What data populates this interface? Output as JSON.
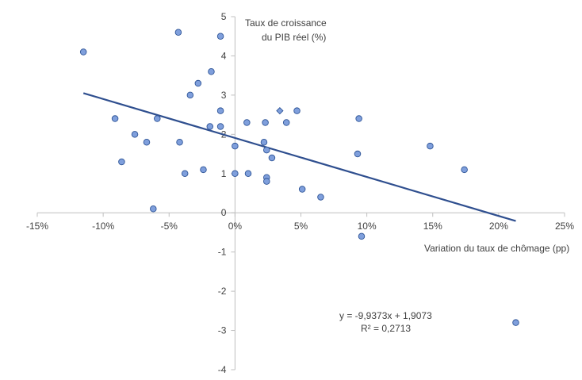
{
  "chart_data": {
    "type": "scatter",
    "title": "",
    "xlabel": "Variation du taux de chômage (pp)",
    "ylabel_lines": [
      "Taux de croissance",
      "du PIB réel (%)"
    ],
    "xlim": [
      -0.15,
      0.25
    ],
    "ylim": [
      -4,
      5
    ],
    "x_ticks": [
      -0.15,
      -0.1,
      -0.05,
      0,
      0.05,
      0.1,
      0.15,
      0.2,
      0.25
    ],
    "x_tick_labels": [
      "-15%",
      "-10%",
      "-5%",
      "0%",
      "5%",
      "10%",
      "15%",
      "20%",
      "25%"
    ],
    "y_ticks": [
      -4,
      -3,
      -2,
      -1,
      0,
      1,
      2,
      3,
      4,
      5
    ],
    "y_tick_labels": [
      "-4",
      "-3",
      "-2",
      "-1",
      "0",
      "1",
      "2",
      "3",
      "4",
      "5"
    ],
    "grid": false,
    "legend": "none",
    "marker_color": "#7f9fdc",
    "marker_edge_color": "#2f5597",
    "trendline_color": "#2f4f8f",
    "axis_color": "#bfbfbf",
    "points": [
      {
        "x": -0.115,
        "y": 4.1
      },
      {
        "x": -0.043,
        "y": 4.6
      },
      {
        "x": -0.011,
        "y": 4.5
      },
      {
        "x": -0.018,
        "y": 3.6
      },
      {
        "x": -0.028,
        "y": 3.3
      },
      {
        "x": -0.034,
        "y": 3.0
      },
      {
        "x": -0.011,
        "y": 2.6
      },
      {
        "x": 0.047,
        "y": 2.6
      },
      {
        "x": -0.091,
        "y": 2.4
      },
      {
        "x": -0.059,
        "y": 2.4
      },
      {
        "x": 0.094,
        "y": 2.4
      },
      {
        "x": 0.009,
        "y": 2.3
      },
      {
        "x": 0.023,
        "y": 2.3
      },
      {
        "x": 0.039,
        "y": 2.3
      },
      {
        "x": -0.019,
        "y": 2.2
      },
      {
        "x": -0.011,
        "y": 2.2
      },
      {
        "x": -0.076,
        "y": 2.0
      },
      {
        "x": -0.067,
        "y": 1.8
      },
      {
        "x": -0.042,
        "y": 1.8
      },
      {
        "x": 0.022,
        "y": 1.8
      },
      {
        "x": 0.0,
        "y": 1.7
      },
      {
        "x": 0.148,
        "y": 1.7
      },
      {
        "x": 0.024,
        "y": 1.6
      },
      {
        "x": 0.093,
        "y": 1.5
      },
      {
        "x": 0.028,
        "y": 1.4
      },
      {
        "x": -0.086,
        "y": 1.3
      },
      {
        "x": -0.024,
        "y": 1.1
      },
      {
        "x": 0.174,
        "y": 1.1
      },
      {
        "x": -0.038,
        "y": 1.0
      },
      {
        "x": 0.0,
        "y": 1.0
      },
      {
        "x": 0.01,
        "y": 1.0
      },
      {
        "x": 0.024,
        "y": 0.9
      },
      {
        "x": 0.024,
        "y": 0.8
      },
      {
        "x": 0.051,
        "y": 0.6
      },
      {
        "x": 0.065,
        "y": 0.4
      },
      {
        "x": -0.062,
        "y": 0.1
      },
      {
        "x": 0.096,
        "y": -0.6
      },
      {
        "x": 0.213,
        "y": -2.8
      }
    ],
    "highlight_points": [
      {
        "x": 0.034,
        "y": 2.6,
        "marker": "diamond"
      }
    ],
    "trendline": {
      "type": "linear",
      "slope": -9.9373,
      "intercept": 1.9073,
      "x_range": [
        -0.115,
        0.213
      ],
      "equation_label": "y = -9,9373x + 1,9073",
      "r2_label": "R² = 0,2713"
    }
  }
}
